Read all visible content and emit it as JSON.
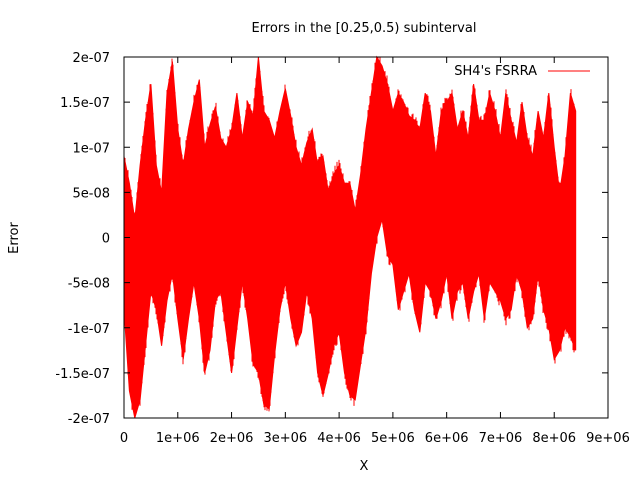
{
  "chart_data": {
    "type": "area",
    "title": "Errors in the [0.25,0.5) subinterval",
    "xlabel": "X",
    "ylabel": "Error",
    "xlim": [
      0,
      9000000
    ],
    "ylim": [
      -2e-07,
      2e-07
    ],
    "xticks": [
      0,
      1000000,
      2000000,
      3000000,
      4000000,
      5000000,
      6000000,
      7000000,
      8000000,
      9000000
    ],
    "xtick_labels": [
      "0",
      "1e+06",
      "2e+06",
      "3e+06",
      "4e+06",
      "5e+06",
      "6e+06",
      "7e+06",
      "8e+06",
      "9e+06"
    ],
    "yticks": [
      2e-07,
      1.5e-07,
      1e-07,
      5e-08,
      0,
      -5e-08,
      -1e-07,
      -1.5e-07,
      -2e-07
    ],
    "ytick_labels": [
      "2e-07",
      "1.5e-07",
      "1e-07",
      "5e-08",
      "0",
      "-5e-08",
      "-1e-07",
      "-1.5e-07",
      "-2e-07"
    ],
    "grid": false,
    "legend_position": "top-right",
    "series": [
      {
        "name": "SH4's FSRRA",
        "color": "#ff0000",
        "x": [
          0,
          100000,
          200000,
          300000,
          400000,
          500000,
          600000,
          700000,
          800000,
          900000,
          1000000,
          1100000,
          1200000,
          1300000,
          1400000,
          1500000,
          1600000,
          1700000,
          1800000,
          1900000,
          2000000,
          2100000,
          2200000,
          2300000,
          2400000,
          2500000,
          2600000,
          2700000,
          2800000,
          2900000,
          3000000,
          3100000,
          3200000,
          3300000,
          3400000,
          3500000,
          3600000,
          3700000,
          3800000,
          3900000,
          4000000,
          4100000,
          4200000,
          4300000,
          4400000,
          4500000,
          4600000,
          4700000,
          4800000,
          4900000,
          5000000,
          5100000,
          5200000,
          5300000,
          5400000,
          5500000,
          5600000,
          5700000,
          5800000,
          5900000,
          6000000,
          6100000,
          6200000,
          6300000,
          6400000,
          6500000,
          6600000,
          6700000,
          6800000,
          6900000,
          7000000,
          7100000,
          7200000,
          7300000,
          7400000,
          7500000,
          7600000,
          7700000,
          7800000,
          7900000,
          8000000,
          8100000,
          8200000,
          8300000,
          8400000
        ],
        "upper": [
          9e-08,
          6e-08,
          2e-08,
          8e-08,
          1.3e-07,
          1.7e-07,
          8e-08,
          5e-08,
          1.6e-07,
          1.95e-07,
          1.2e-07,
          8e-08,
          1.2e-07,
          1.5e-07,
          1.75e-07,
          1e-07,
          1.25e-07,
          1.45e-07,
          1.1e-07,
          1e-07,
          1.2e-07,
          1.6e-07,
          1.1e-07,
          1.5e-07,
          1.35e-07,
          2e-07,
          1.4e-07,
          1.3e-07,
          1.1e-07,
          1.4e-07,
          1.65e-07,
          1.35e-07,
          1e-07,
          8e-08,
          1.05e-07,
          1.2e-07,
          8e-08,
          9e-08,
          5e-08,
          7e-08,
          8e-08,
          6e-08,
          6e-08,
          3e-08,
          7e-08,
          1.2e-07,
          1.6e-07,
          2e-07,
          1.9e-07,
          1.7e-07,
          1.4e-07,
          1.6e-07,
          1.5e-07,
          1.35e-07,
          1.3e-07,
          1.2e-07,
          1.6e-07,
          1.4e-07,
          9e-08,
          1.4e-07,
          1.5e-07,
          1.6e-07,
          1.2e-07,
          1.4e-07,
          1.1e-07,
          1.7e-07,
          1.3e-07,
          1.3e-07,
          1.6e-07,
          1.4e-07,
          1.1e-07,
          1.6e-07,
          1.3e-07,
          1.05e-07,
          1.5e-07,
          1.1e-07,
          9e-08,
          1.4e-07,
          1.1e-07,
          1.6e-07,
          1e-07,
          5e-08,
          9e-08,
          1.6e-07,
          1.4e-07
        ],
        "lower": [
          -8e-08,
          -1.7e-07,
          -2e-07,
          -1.8e-07,
          -1.2e-07,
          -6e-08,
          -8e-08,
          -1.2e-07,
          -7e-08,
          -4e-08,
          -9e-08,
          -1.35e-07,
          -9e-08,
          -5e-08,
          -9e-08,
          -1.5e-07,
          -1.25e-07,
          -7e-08,
          -6e-08,
          -1.05e-07,
          -1.5e-07,
          -1e-07,
          -5e-08,
          -9e-08,
          -1.4e-07,
          -1.5e-07,
          -1.85e-07,
          -1.9e-07,
          -1.3e-07,
          -8e-08,
          -5e-08,
          -9e-08,
          -1.2e-07,
          -1.05e-07,
          -6e-08,
          -9e-08,
          -1.5e-07,
          -1.75e-07,
          -1.5e-07,
          -1.2e-07,
          -1.05e-07,
          -1.5e-07,
          -1.75e-07,
          -1.8e-07,
          -1.4e-07,
          -1e-07,
          -4e-08,
          0,
          2e-08,
          -2e-08,
          -3e-08,
          -8e-08,
          -6e-08,
          -4e-08,
          -8e-08,
          -1.05e-07,
          -5e-08,
          -6e-08,
          -9e-08,
          -7e-08,
          -4e-08,
          -9e-08,
          -6e-08,
          -5e-08,
          -9e-08,
          -6e-08,
          -4e-08,
          -9e-08,
          -5e-08,
          -6e-08,
          -7e-08,
          -9e-08,
          -8e-08,
          -4e-08,
          -6e-08,
          -1e-07,
          -9e-08,
          -4e-08,
          -8e-08,
          -1e-07,
          -1.35e-07,
          -1.25e-07,
          -1e-07,
          -1.1e-07,
          -1.25e-07
        ]
      }
    ]
  }
}
